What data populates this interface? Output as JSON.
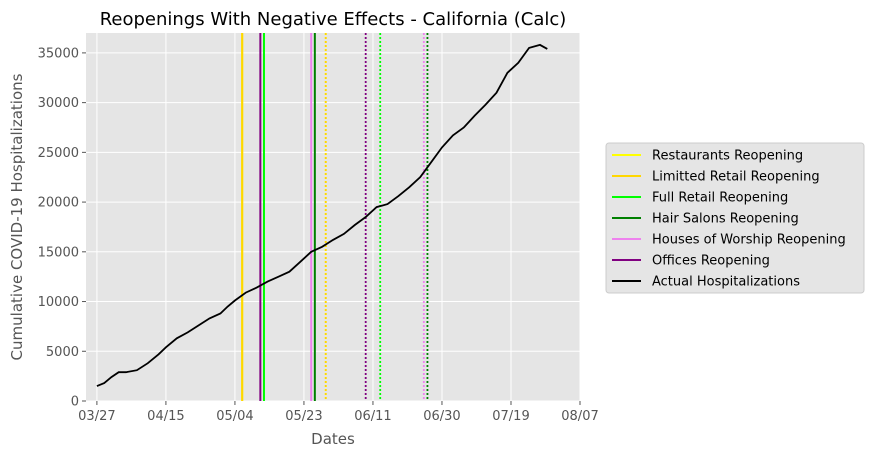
{
  "chart_data": {
    "type": "line",
    "title": "Reopenings With Negative Effects - California (Calc)",
    "xlabel": "Dates",
    "ylabel": "Cumulative COVID-19 Hospitalizations",
    "x_ticks": [
      "03/27",
      "04/15",
      "05/04",
      "05/23",
      "06/11",
      "06/30",
      "07/19",
      "08/07"
    ],
    "x_tick_dates": [
      "2020-03-27",
      "2020-04-15",
      "2020-05-04",
      "2020-05-23",
      "2020-06-11",
      "2020-06-30",
      "2020-07-19",
      "2020-08-07"
    ],
    "y_ticks": [
      0,
      5000,
      10000,
      15000,
      20000,
      25000,
      30000,
      35000
    ],
    "xlim": [
      "2020-03-24",
      "2020-08-07"
    ],
    "ylim": [
      0,
      37000
    ],
    "grid": true,
    "legend_position": "right",
    "background": "#e5e5e5",
    "reopenings": [
      {
        "name": "Restaurants Reopening",
        "color": "#ffff00",
        "date": "2020-05-06",
        "delayed_date": "2020-05-29"
      },
      {
        "name": "Limitted Retail Reopening",
        "color": "#ffd700",
        "date": "2020-05-06",
        "delayed_date": "2020-05-29"
      },
      {
        "name": "Full Retail Reopening",
        "color": "#00ff00",
        "date": "2020-05-12",
        "delayed_date": "2020-06-13"
      },
      {
        "name": "Hair Salons Reopening",
        "color": "#008000",
        "date": "2020-05-26",
        "delayed_date": "2020-06-26"
      },
      {
        "name": "Houses of Worship Reopening",
        "color": "#ee82ee",
        "date": "2020-05-25",
        "delayed_date": "2020-06-25"
      },
      {
        "name": "Offices Reopening",
        "color": "#800080",
        "date": "2020-05-11",
        "delayed_date": "2020-06-09"
      }
    ],
    "series": [
      {
        "name": "Actual Hospitalizations",
        "color": "#000000",
        "x": [
          "2020-03-27",
          "2020-03-29",
          "2020-03-31",
          "2020-04-02",
          "2020-04-04",
          "2020-04-07",
          "2020-04-10",
          "2020-04-13",
          "2020-04-15",
          "2020-04-18",
          "2020-04-21",
          "2020-04-24",
          "2020-04-27",
          "2020-04-30",
          "2020-05-02",
          "2020-05-04",
          "2020-05-07",
          "2020-05-10",
          "2020-05-13",
          "2020-05-16",
          "2020-05-19",
          "2020-05-22",
          "2020-05-25",
          "2020-05-28",
          "2020-05-31",
          "2020-06-03",
          "2020-06-06",
          "2020-06-09",
          "2020-06-12",
          "2020-06-15",
          "2020-06-18",
          "2020-06-21",
          "2020-06-24",
          "2020-06-27",
          "2020-06-30",
          "2020-07-03",
          "2020-07-06",
          "2020-07-09",
          "2020-07-12",
          "2020-07-15",
          "2020-07-18",
          "2020-07-21",
          "2020-07-24",
          "2020-07-27",
          "2020-07-29"
        ],
        "y": [
          1500,
          1800,
          2400,
          2900,
          2900,
          3100,
          3800,
          4700,
          5400,
          6300,
          6900,
          7600,
          8300,
          8800,
          9500,
          10100,
          10900,
          11400,
          12000,
          12500,
          13000,
          14000,
          15000,
          15500,
          16200,
          16800,
          17700,
          18500,
          19500,
          19800,
          20600,
          21500,
          22500,
          24000,
          25500,
          26700,
          27500,
          28700,
          29800,
          31000,
          33000,
          34000,
          35500,
          35800,
          35400
        ]
      }
    ]
  }
}
